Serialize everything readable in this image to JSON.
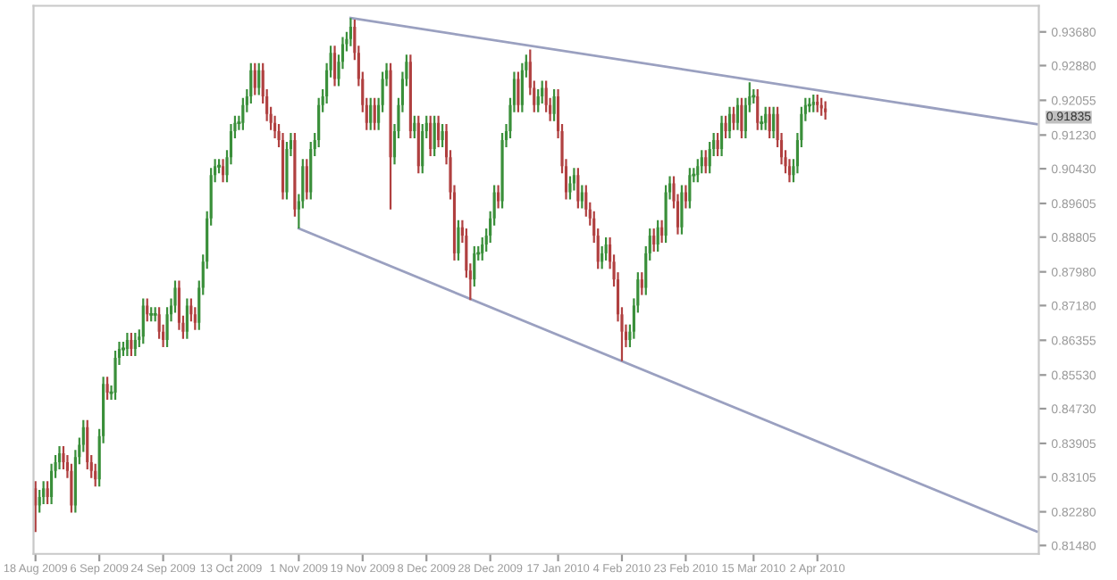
{
  "chart_data": {
    "type": "candlestick",
    "categories": [
      "18 Aug 2009",
      null,
      null,
      null,
      null,
      null,
      null,
      null,
      null,
      null,
      null,
      null,
      null,
      null,
      null,
      null,
      "6 Sep 2009",
      null,
      null,
      null,
      null,
      null,
      null,
      null,
      null,
      null,
      null,
      null,
      null,
      null,
      null,
      null,
      "24 Sep 2009",
      null,
      null,
      null,
      null,
      null,
      null,
      null,
      null,
      null,
      null,
      null,
      null,
      null,
      null,
      null,
      null,
      "13 Oct 2009",
      null,
      null,
      null,
      null,
      null,
      null,
      null,
      null,
      null,
      null,
      null,
      null,
      null,
      null,
      null,
      null,
      "1 Nov 2009",
      null,
      null,
      null,
      null,
      null,
      null,
      null,
      null,
      null,
      null,
      null,
      null,
      null,
      null,
      null,
      "19 Nov 2009",
      null,
      null,
      null,
      null,
      null,
      null,
      null,
      null,
      null,
      null,
      null,
      null,
      null,
      null,
      null,
      "8 Dec 2009",
      null,
      null,
      null,
      null,
      null,
      null,
      null,
      null,
      null,
      null,
      null,
      null,
      null,
      null,
      null,
      "28 Dec 2009",
      null,
      null,
      null,
      null,
      null,
      null,
      null,
      null,
      null,
      null,
      null,
      null,
      null,
      null,
      null,
      null,
      "17 Jan 2010",
      null,
      null,
      null,
      null,
      null,
      null,
      null,
      null,
      null,
      null,
      null,
      null,
      null,
      null,
      null,
      "4 Feb 2010",
      null,
      null,
      null,
      null,
      null,
      null,
      null,
      null,
      null,
      null,
      null,
      null,
      null,
      null,
      null,
      "23 Feb 2010",
      null,
      null,
      null,
      null,
      null,
      null,
      null,
      null,
      null,
      null,
      null,
      null,
      null,
      null,
      null,
      null,
      "15 Mar 2010",
      null,
      null,
      null,
      null,
      null,
      null,
      null,
      null,
      null,
      null,
      null,
      null,
      null,
      null,
      null,
      "2 Apr 2010",
      null,
      null,
      null,
      null,
      null,
      null,
      null,
      null,
      null,
      null,
      null,
      null,
      null,
      null,
      null,
      null,
      null,
      null,
      null,
      null,
      null,
      null,
      null,
      null,
      null,
      null,
      null,
      null,
      null,
      null,
      null,
      null,
      null,
      null,
      null,
      null,
      null,
      null,
      null,
      null,
      null,
      null,
      null,
      null,
      null,
      null,
      null,
      null,
      null,
      null,
      null,
      null,
      null,
      null,
      null
    ],
    "ohlc": [
      [
        0.8284,
        0.8301,
        0.818,
        0.8243
      ],
      [
        0.8243,
        0.828,
        0.8226,
        0.8263
      ],
      [
        0.8263,
        0.8301,
        0.8246,
        0.8284
      ],
      [
        0.8284,
        0.8301,
        0.8246,
        0.8263
      ],
      [
        0.8263,
        0.8342,
        0.8246,
        0.8325
      ],
      [
        0.8325,
        0.8363,
        0.8308,
        0.8346
      ],
      [
        0.8346,
        0.8384,
        0.8329,
        0.8367
      ],
      [
        0.8367,
        0.8384,
        0.8329,
        0.8346
      ],
      [
        0.8346,
        0.8363,
        0.8308,
        0.8325
      ],
      [
        0.8325,
        0.8342,
        0.8226,
        0.8243
      ],
      [
        0.8243,
        0.8375,
        0.8226,
        0.8358
      ],
      [
        0.8358,
        0.8404,
        0.8341,
        0.8387
      ],
      [
        0.8387,
        0.8446,
        0.837,
        0.8429
      ],
      [
        0.8429,
        0.8446,
        0.8329,
        0.8346
      ],
      [
        0.8346,
        0.8363,
        0.8308,
        0.8325
      ],
      [
        0.8325,
        0.8342,
        0.8288,
        0.8305
      ],
      [
        0.8305,
        0.8425,
        0.8288,
        0.8408
      ],
      [
        0.8408,
        0.8549,
        0.8391,
        0.8532
      ],
      [
        0.8532,
        0.8549,
        0.8494,
        0.8511
      ],
      [
        0.8511,
        0.8528,
        0.8494,
        0.8511
      ],
      [
        0.8511,
        0.8611,
        0.8494,
        0.8594
      ],
      [
        0.8594,
        0.8632,
        0.8577,
        0.8615
      ],
      [
        0.8615,
        0.8632,
        0.8598,
        0.8615
      ],
      [
        0.8615,
        0.8653,
        0.8598,
        0.8636
      ],
      [
        0.8636,
        0.8653,
        0.8598,
        0.8615
      ],
      [
        0.8615,
        0.8653,
        0.8598,
        0.8636
      ],
      [
        0.8636,
        0.8661,
        0.8619,
        0.8644
      ],
      [
        0.8644,
        0.8735,
        0.8627,
        0.8718
      ],
      [
        0.8718,
        0.8735,
        0.868,
        0.8697
      ],
      [
        0.8697,
        0.8714,
        0.868,
        0.8697
      ],
      [
        0.8697,
        0.8714,
        0.868,
        0.8697
      ],
      [
        0.8697,
        0.8714,
        0.8639,
        0.8656
      ],
      [
        0.8656,
        0.8673,
        0.8619,
        0.8636
      ],
      [
        0.8636,
        0.8714,
        0.8619,
        0.8697
      ],
      [
        0.8697,
        0.8735,
        0.868,
        0.8718
      ],
      [
        0.8718,
        0.8777,
        0.8701,
        0.876
      ],
      [
        0.876,
        0.8777,
        0.866,
        0.8677
      ],
      [
        0.8677,
        0.8694,
        0.8639,
        0.8656
      ],
      [
        0.8656,
        0.8735,
        0.8639,
        0.8718
      ],
      [
        0.8718,
        0.8735,
        0.868,
        0.8697
      ],
      [
        0.8697,
        0.8714,
        0.866,
        0.8677
      ],
      [
        0.8677,
        0.8777,
        0.866,
        0.876
      ],
      [
        0.876,
        0.8839,
        0.8743,
        0.8822
      ],
      [
        0.8822,
        0.8942,
        0.8805,
        0.8925
      ],
      [
        0.8925,
        0.9045,
        0.8908,
        0.9028
      ],
      [
        0.9028,
        0.9066,
        0.9011,
        0.9049
      ],
      [
        0.9049,
        0.9066,
        0.9032,
        0.9049
      ],
      [
        0.9049,
        0.9066,
        0.9011,
        0.9028
      ],
      [
        0.9028,
        0.9087,
        0.9011,
        0.907
      ],
      [
        0.907,
        0.9149,
        0.9053,
        0.9132
      ],
      [
        0.9132,
        0.9169,
        0.9115,
        0.9152
      ],
      [
        0.9152,
        0.9169,
        0.9135,
        0.9152
      ],
      [
        0.9152,
        0.9211,
        0.9135,
        0.9194
      ],
      [
        0.9194,
        0.9232,
        0.9177,
        0.9215
      ],
      [
        0.9215,
        0.9294,
        0.9198,
        0.9277
      ],
      [
        0.9277,
        0.9294,
        0.9218,
        0.9235
      ],
      [
        0.9235,
        0.9294,
        0.9218,
        0.9277
      ],
      [
        0.9277,
        0.9294,
        0.9198,
        0.9215
      ],
      [
        0.9215,
        0.9232,
        0.9156,
        0.9173
      ],
      [
        0.9173,
        0.919,
        0.9135,
        0.9152
      ],
      [
        0.9152,
        0.9169,
        0.9115,
        0.9132
      ],
      [
        0.9132,
        0.9149,
        0.9094,
        0.9111
      ],
      [
        0.9111,
        0.9128,
        0.897,
        0.8987
      ],
      [
        0.8987,
        0.9107,
        0.897,
        0.909
      ],
      [
        0.909,
        0.9128,
        0.9073,
        0.9111
      ],
      [
        0.9111,
        0.9128,
        0.8929,
        0.8946
      ],
      [
        0.8946,
        0.8983,
        0.8901,
        0.8966
      ],
      [
        0.8966,
        0.9066,
        0.8949,
        0.9049
      ],
      [
        0.9049,
        0.9066,
        0.897,
        0.8987
      ],
      [
        0.8987,
        0.9107,
        0.897,
        0.909
      ],
      [
        0.909,
        0.9128,
        0.9073,
        0.9111
      ],
      [
        0.9111,
        0.9211,
        0.9094,
        0.9194
      ],
      [
        0.9194,
        0.9232,
        0.9177,
        0.9215
      ],
      [
        0.9215,
        0.9294,
        0.9198,
        0.9277
      ],
      [
        0.9277,
        0.9335,
        0.926,
        0.9318
      ],
      [
        0.9318,
        0.9335,
        0.9239,
        0.9256
      ],
      [
        0.9256,
        0.9314,
        0.9239,
        0.9297
      ],
      [
        0.9297,
        0.9356,
        0.928,
        0.9339
      ],
      [
        0.9339,
        0.9368,
        0.9322,
        0.9351
      ],
      [
        0.9351,
        0.9401,
        0.9334,
        0.938
      ],
      [
        0.938,
        0.9397,
        0.9301,
        0.9318
      ],
      [
        0.9318,
        0.9335,
        0.9239,
        0.9256
      ],
      [
        0.9256,
        0.9273,
        0.9177,
        0.9194
      ],
      [
        0.9194,
        0.9211,
        0.9135,
        0.9152
      ],
      [
        0.9152,
        0.9211,
        0.9135,
        0.9194
      ],
      [
        0.9194,
        0.9211,
        0.9135,
        0.9152
      ],
      [
        0.9152,
        0.9211,
        0.9135,
        0.9194
      ],
      [
        0.9194,
        0.9273,
        0.9177,
        0.9256
      ],
      [
        0.9256,
        0.9294,
        0.9239,
        0.9277
      ],
      [
        0.9277,
        0.9294,
        0.8946,
        0.907
      ],
      [
        0.907,
        0.9149,
        0.9053,
        0.9132
      ],
      [
        0.9132,
        0.9211,
        0.9115,
        0.9194
      ],
      [
        0.9194,
        0.9273,
        0.9177,
        0.9256
      ],
      [
        0.9256,
        0.9314,
        0.9239,
        0.9297
      ],
      [
        0.9297,
        0.9314,
        0.9115,
        0.9132
      ],
      [
        0.9132,
        0.9169,
        0.9115,
        0.9152
      ],
      [
        0.9152,
        0.9169,
        0.9032,
        0.9049
      ],
      [
        0.9049,
        0.9149,
        0.9032,
        0.9132
      ],
      [
        0.9132,
        0.9169,
        0.9115,
        0.9152
      ],
      [
        0.9152,
        0.9169,
        0.9073,
        0.909
      ],
      [
        0.909,
        0.9169,
        0.9073,
        0.9152
      ],
      [
        0.9152,
        0.9169,
        0.9094,
        0.9111
      ],
      [
        0.9111,
        0.9149,
        0.9094,
        0.9132
      ],
      [
        0.9132,
        0.9149,
        0.9053,
        0.907
      ],
      [
        0.907,
        0.9087,
        0.897,
        0.8987
      ],
      [
        0.8987,
        0.9004,
        0.8825,
        0.8842
      ],
      [
        0.8842,
        0.8921,
        0.8825,
        0.8904
      ],
      [
        0.8904,
        0.8921,
        0.8867,
        0.8884
      ],
      [
        0.8884,
        0.8901,
        0.8784,
        0.8801
      ],
      [
        0.8801,
        0.8818,
        0.8731,
        0.878
      ],
      [
        0.878,
        0.8859,
        0.8763,
        0.8842
      ],
      [
        0.8842,
        0.8859,
        0.8825,
        0.8842
      ],
      [
        0.8842,
        0.888,
        0.8825,
        0.8863
      ],
      [
        0.8863,
        0.8901,
        0.8846,
        0.8884
      ],
      [
        0.8884,
        0.8942,
        0.8867,
        0.8925
      ],
      [
        0.8925,
        0.9004,
        0.8908,
        0.8987
      ],
      [
        0.8987,
        0.9004,
        0.8949,
        0.8966
      ],
      [
        0.8966,
        0.9128,
        0.8949,
        0.9111
      ],
      [
        0.9111,
        0.9149,
        0.9094,
        0.9132
      ],
      [
        0.9132,
        0.9211,
        0.9115,
        0.9194
      ],
      [
        0.9194,
        0.9273,
        0.9177,
        0.9256
      ],
      [
        0.9256,
        0.9273,
        0.9177,
        0.9194
      ],
      [
        0.9194,
        0.9294,
        0.9177,
        0.9277
      ],
      [
        0.9277,
        0.9314,
        0.926,
        0.9297
      ],
      [
        0.9297,
        0.9326,
        0.9218,
        0.9235
      ],
      [
        0.9235,
        0.9252,
        0.9177,
        0.9194
      ],
      [
        0.9194,
        0.9232,
        0.9177,
        0.9215
      ],
      [
        0.9215,
        0.9252,
        0.9198,
        0.9235
      ],
      [
        0.9235,
        0.9252,
        0.9177,
        0.9194
      ],
      [
        0.9194,
        0.9211,
        0.9156,
        0.9173
      ],
      [
        0.9173,
        0.9232,
        0.9156,
        0.9215
      ],
      [
        0.9215,
        0.9232,
        0.9115,
        0.9132
      ],
      [
        0.9132,
        0.9149,
        0.9032,
        0.9049
      ],
      [
        0.9049,
        0.9066,
        0.897,
        0.8987
      ],
      [
        0.8987,
        0.9025,
        0.897,
        0.9008
      ],
      [
        0.9008,
        0.9045,
        0.8991,
        0.9028
      ],
      [
        0.9028,
        0.9045,
        0.8949,
        0.8966
      ],
      [
        0.8966,
        0.9004,
        0.8949,
        0.8987
      ],
      [
        0.8987,
        0.9004,
        0.8929,
        0.8946
      ],
      [
        0.8946,
        0.8963,
        0.8908,
        0.8925
      ],
      [
        0.8925,
        0.8942,
        0.8867,
        0.8884
      ],
      [
        0.8884,
        0.8901,
        0.8805,
        0.8822
      ],
      [
        0.8822,
        0.8859,
        0.8805,
        0.8842
      ],
      [
        0.8842,
        0.888,
        0.8825,
        0.8863
      ],
      [
        0.8863,
        0.888,
        0.8805,
        0.8822
      ],
      [
        0.8822,
        0.8839,
        0.8763,
        0.878
      ],
      [
        0.878,
        0.8797,
        0.868,
        0.8697
      ],
      [
        0.8697,
        0.8714,
        0.8586,
        0.8656
      ],
      [
        0.8656,
        0.8673,
        0.8619,
        0.8636
      ],
      [
        0.8636,
        0.8673,
        0.8619,
        0.8656
      ],
      [
        0.8656,
        0.8735,
        0.8639,
        0.8718
      ],
      [
        0.8718,
        0.8797,
        0.8701,
        0.878
      ],
      [
        0.878,
        0.8797,
        0.8743,
        0.876
      ],
      [
        0.876,
        0.8859,
        0.8743,
        0.8842
      ],
      [
        0.8842,
        0.8901,
        0.8825,
        0.8884
      ],
      [
        0.8884,
        0.8901,
        0.8846,
        0.8863
      ],
      [
        0.8863,
        0.8921,
        0.8846,
        0.8904
      ],
      [
        0.8904,
        0.8921,
        0.8867,
        0.8884
      ],
      [
        0.8884,
        0.9004,
        0.8867,
        0.8987
      ],
      [
        0.8987,
        0.9025,
        0.897,
        0.9008
      ],
      [
        0.9008,
        0.9025,
        0.8949,
        0.8966
      ],
      [
        0.8966,
        0.8983,
        0.8887,
        0.8904
      ],
      [
        0.8904,
        0.9004,
        0.8887,
        0.8987
      ],
      [
        0.8987,
        0.9004,
        0.8949,
        0.8966
      ],
      [
        0.8966,
        0.9045,
        0.8949,
        0.9028
      ],
      [
        0.9028,
        0.9045,
        0.9011,
        0.9028
      ],
      [
        0.9028,
        0.9066,
        0.9011,
        0.9049
      ],
      [
        0.9049,
        0.9087,
        0.9032,
        0.907
      ],
      [
        0.907,
        0.9087,
        0.9032,
        0.9049
      ],
      [
        0.9049,
        0.9107,
        0.9032,
        0.909
      ],
      [
        0.909,
        0.9128,
        0.9073,
        0.9111
      ],
      [
        0.9111,
        0.9128,
        0.9073,
        0.909
      ],
      [
        0.909,
        0.9169,
        0.9073,
        0.9152
      ],
      [
        0.9152,
        0.9169,
        0.9115,
        0.9132
      ],
      [
        0.9132,
        0.919,
        0.9115,
        0.9173
      ],
      [
        0.9173,
        0.919,
        0.9135,
        0.9152
      ],
      [
        0.9152,
        0.9211,
        0.9135,
        0.9194
      ],
      [
        0.9194,
        0.9211,
        0.9115,
        0.9132
      ],
      [
        0.9132,
        0.9211,
        0.9115,
        0.9194
      ],
      [
        0.9194,
        0.9248,
        0.9177,
        0.9215
      ],
      [
        0.9215,
        0.9232,
        0.9198,
        0.9215
      ],
      [
        0.9215,
        0.9232,
        0.9135,
        0.9152
      ],
      [
        0.9152,
        0.9169,
        0.9135,
        0.9152
      ],
      [
        0.9152,
        0.919,
        0.9135,
        0.9173
      ],
      [
        0.9173,
        0.919,
        0.9115,
        0.9132
      ],
      [
        0.9132,
        0.919,
        0.9115,
        0.9173
      ],
      [
        0.9173,
        0.919,
        0.9094,
        0.9111
      ],
      [
        0.9111,
        0.9128,
        0.9053,
        0.907
      ],
      [
        0.907,
        0.9087,
        0.9032,
        0.9049
      ],
      [
        0.9049,
        0.9066,
        0.9011,
        0.9028
      ],
      [
        0.9028,
        0.9066,
        0.9011,
        0.9049
      ],
      [
        0.9049,
        0.9128,
        0.9032,
        0.9111
      ],
      [
        0.9111,
        0.919,
        0.9094,
        0.9173
      ],
      [
        0.9173,
        0.9211,
        0.9156,
        0.9194
      ],
      [
        0.9194,
        0.9211,
        0.9177,
        0.9194
      ],
      [
        0.9194,
        0.9219,
        0.9177,
        0.9202
      ],
      [
        0.9202,
        0.9219,
        0.9177,
        0.9194
      ],
      [
        0.9194,
        0.9211,
        0.9169,
        0.9186
      ],
      [
        0.9186,
        0.9203,
        0.916,
        0.9177
      ],
      null,
      null,
      null,
      null,
      null,
      null,
      null,
      null,
      null,
      null,
      null,
      null,
      null,
      null,
      null,
      null,
      null,
      null,
      null,
      null,
      null,
      null,
      null,
      null,
      null,
      null,
      null,
      null,
      null,
      null,
      null,
      null,
      null,
      null,
      null,
      null,
      null,
      null,
      null,
      null,
      null,
      null,
      null,
      null,
      null,
      null,
      null,
      null,
      null,
      null,
      null,
      null,
      null
    ],
    "series": [
      {
        "type": "line",
        "color": "#9aa0c0",
        "values": [
          null,
          null,
          null,
          null,
          null,
          null,
          null,
          null,
          null,
          null,
          null,
          null,
          null,
          null,
          null,
          null,
          null,
          null,
          null,
          null,
          null,
          null,
          null,
          null,
          null,
          null,
          null,
          null,
          null,
          null,
          null,
          null,
          null,
          null,
          null,
          null,
          null,
          null,
          null,
          null,
          null,
          null,
          null,
          null,
          null,
          null,
          null,
          null,
          null,
          null,
          null,
          null,
          null,
          null,
          null,
          null,
          null,
          null,
          null,
          null,
          null,
          null,
          null,
          null,
          null,
          null,
          null,
          null,
          null,
          null,
          null,
          null,
          null,
          null,
          null,
          null,
          null,
          null,
          null,
          0.9401,
          null,
          null,
          null,
          null,
          null,
          null,
          null,
          null,
          null,
          null,
          null,
          null,
          null,
          null,
          null,
          null,
          null,
          null,
          null,
          null,
          null,
          null,
          null,
          null,
          null,
          null,
          null,
          null,
          null,
          null,
          null,
          null,
          null,
          null,
          null,
          null,
          null,
          null,
          null,
          null,
          null,
          null,
          null,
          null,
          null,
          null,
          null,
          null,
          null,
          null,
          null,
          null,
          null,
          null,
          null,
          null,
          null,
          null,
          null,
          null,
          null,
          null,
          null,
          null,
          null,
          null,
          null,
          null,
          null,
          null,
          null,
          null,
          null,
          null,
          null,
          null,
          null,
          null,
          null,
          null,
          null,
          null,
          null,
          null,
          null,
          null,
          null,
          null,
          null,
          null,
          null,
          null,
          null,
          null,
          null,
          null,
          null,
          null,
          null,
          null,
          null,
          null,
          null,
          null,
          null,
          null,
          null,
          null,
          null,
          null,
          null,
          null,
          null,
          null,
          null,
          null,
          null,
          null,
          null,
          null,
          null,
          null,
          null,
          null,
          null,
          null,
          null,
          null,
          null,
          null,
          null,
          null,
          null,
          null,
          null,
          null,
          null,
          null,
          null,
          null,
          null,
          null,
          null,
          null,
          null,
          null,
          null,
          null,
          null,
          null,
          null,
          null,
          null,
          null,
          null,
          null,
          null,
          null,
          null,
          null,
          null,
          null,
          null,
          null,
          null,
          null,
          null,
          null,
          null,
          null,
          null,
          0.9149
        ]
      },
      {
        "type": "line",
        "color": "#9aa0c0",
        "values": [
          null,
          null,
          null,
          null,
          null,
          null,
          null,
          null,
          null,
          null,
          null,
          null,
          null,
          null,
          null,
          null,
          null,
          null,
          null,
          null,
          null,
          null,
          null,
          null,
          null,
          null,
          null,
          null,
          null,
          null,
          null,
          null,
          null,
          null,
          null,
          null,
          null,
          null,
          null,
          null,
          null,
          null,
          null,
          null,
          null,
          null,
          null,
          null,
          null,
          null,
          null,
          null,
          null,
          null,
          null,
          null,
          null,
          null,
          null,
          null,
          null,
          null,
          null,
          null,
          null,
          null,
          0.8901,
          null,
          null,
          null,
          null,
          null,
          null,
          null,
          null,
          null,
          null,
          null,
          null,
          null,
          null,
          null,
          null,
          null,
          null,
          null,
          null,
          null,
          null,
          null,
          null,
          null,
          null,
          null,
          null,
          null,
          null,
          null,
          null,
          null,
          null,
          null,
          null,
          null,
          null,
          null,
          null,
          null,
          null,
          null,
          null,
          null,
          null,
          null,
          null,
          null,
          null,
          null,
          null,
          null,
          null,
          null,
          null,
          null,
          null,
          null,
          null,
          null,
          null,
          null,
          null,
          null,
          null,
          null,
          null,
          null,
          null,
          null,
          null,
          null,
          null,
          null,
          null,
          null,
          null,
          null,
          null,
          null,
          null,
          null,
          null,
          null,
          null,
          null,
          null,
          null,
          null,
          null,
          null,
          null,
          null,
          null,
          null,
          null,
          null,
          null,
          null,
          null,
          null,
          null,
          null,
          null,
          null,
          null,
          null,
          null,
          null,
          null,
          null,
          null,
          null,
          null,
          null,
          null,
          null,
          null,
          null,
          null,
          null,
          null,
          null,
          null,
          null,
          null,
          null,
          null,
          null,
          null,
          null,
          null,
          null,
          null,
          null,
          null,
          null,
          null,
          null,
          null,
          null,
          null,
          null,
          null,
          null,
          null,
          null,
          null,
          null,
          null,
          null,
          null,
          null,
          null,
          null,
          null,
          null,
          null,
          null,
          null,
          null,
          null,
          null,
          null,
          null,
          null,
          null,
          null,
          null,
          null,
          null,
          null,
          null,
          null,
          null,
          null,
          null,
          null,
          null,
          null,
          null,
          null,
          null,
          0.8181
        ]
      }
    ],
    "ylim": [
      0.8128,
      0.943
    ],
    "yticks": [
      {
        "value": 0.9368,
        "label": "0.93680"
      },
      {
        "value": 0.9288,
        "label": "0.92880"
      },
      {
        "value": 0.92055,
        "label": "0.92055"
      },
      {
        "value": 0.9123,
        "label": "0.91230"
      },
      {
        "value": 0.9043,
        "label": "0.90430"
      },
      {
        "value": 0.89605,
        "label": "0.89605"
      },
      {
        "value": 0.88805,
        "label": "0.88805"
      },
      {
        "value": 0.8798,
        "label": "0.87980"
      },
      {
        "value": 0.8718,
        "label": "0.87180"
      },
      {
        "value": 0.86355,
        "label": "0.86355"
      },
      {
        "value": 0.8553,
        "label": "0.85530"
      },
      {
        "value": 0.8473,
        "label": "0.84730"
      },
      {
        "value": 0.83905,
        "label": "0.83905"
      },
      {
        "value": 0.83105,
        "label": "0.83105"
      },
      {
        "value": 0.8228,
        "label": "0.82280"
      },
      {
        "value": 0.8148,
        "label": "0.81480"
      }
    ],
    "annotations": [
      "0.91835"
    ],
    "grid": false,
    "legend": false
  }
}
